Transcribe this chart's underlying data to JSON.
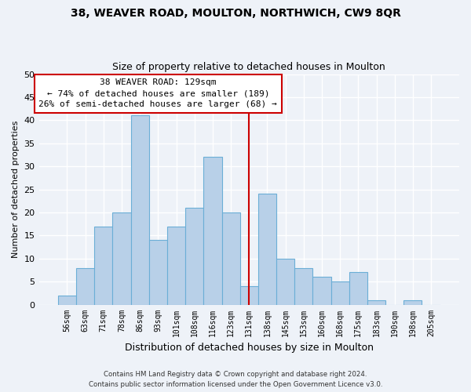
{
  "title": "38, WEAVER ROAD, MOULTON, NORTHWICH, CW9 8QR",
  "subtitle": "Size of property relative to detached houses in Moulton",
  "xlabel": "Distribution of detached houses by size in Moulton",
  "ylabel": "Number of detached properties",
  "bin_labels": [
    "56sqm",
    "63sqm",
    "71sqm",
    "78sqm",
    "86sqm",
    "93sqm",
    "101sqm",
    "108sqm",
    "116sqm",
    "123sqm",
    "131sqm",
    "138sqm",
    "145sqm",
    "153sqm",
    "160sqm",
    "168sqm",
    "175sqm",
    "183sqm",
    "190sqm",
    "198sqm",
    "205sqm"
  ],
  "bar_heights": [
    2,
    8,
    17,
    20,
    41,
    14,
    17,
    21,
    32,
    20,
    4,
    24,
    10,
    8,
    6,
    5,
    7,
    1,
    0,
    1,
    0
  ],
  "bar_color": "#b8d0e8",
  "bar_edge_color": "#6baed6",
  "vline_index": 10,
  "annotation_title": "38 WEAVER ROAD: 129sqm",
  "annotation_line1": "← 74% of detached houses are smaller (189)",
  "annotation_line2": "26% of semi-detached houses are larger (68) →",
  "annotation_box_color": "#ffffff",
  "annotation_border_color": "#cc0000",
  "vline_color": "#cc0000",
  "ylim": [
    0,
    50
  ],
  "yticks": [
    0,
    5,
    10,
    15,
    20,
    25,
    30,
    35,
    40,
    45,
    50
  ],
  "footer_line1": "Contains HM Land Registry data © Crown copyright and database right 2024.",
  "footer_line2": "Contains public sector information licensed under the Open Government Licence v3.0.",
  "bg_color": "#eef2f8",
  "grid_color": "#ffffff",
  "title_fontsize": 10,
  "subtitle_fontsize": 9
}
